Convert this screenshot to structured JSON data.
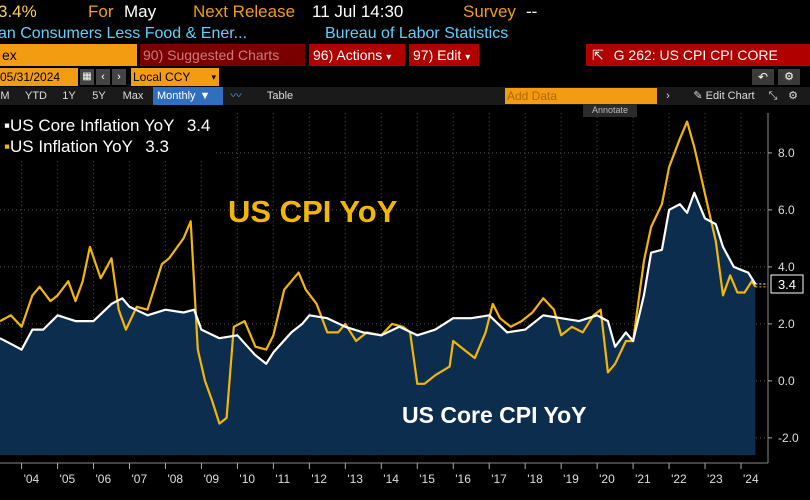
{
  "header": {
    "last_value": "3.4%",
    "for_label": "For",
    "for_value": "May",
    "next_label": "Next Release",
    "next_value": "11 Jul 14:30",
    "survey_label": "Survey",
    "survey_value": "--",
    "series_name": "an Consumers Less Food & Ener...",
    "source": "Bureau of Labor Statistics"
  },
  "toolbar": {
    "index_label": "ex",
    "suggested": "90) Suggested Charts",
    "actions": "96) Actions",
    "edit": "97) Edit",
    "title": "G 262: US CPI CPI CORE"
  },
  "controls": {
    "date": "05/31/2024",
    "currency": "Local CCY",
    "add_data": "Add Data",
    "edit_chart": "Edit Chart",
    "annotate": "Annotate"
  },
  "ranges": {
    "items": [
      "M",
      "YTD",
      "1Y",
      "5Y",
      "Max"
    ],
    "frequency": "Monthly",
    "table": "Table"
  },
  "colors": {
    "core": "#ffffff",
    "headline": "#f2b705",
    "fill": "#0e2f52",
    "orange": "#f39c12",
    "blue_text": "#5fd0ff",
    "red_bar": "#b00000"
  },
  "chart_data": {
    "type": "line",
    "legend": [
      {
        "name": "US Core Inflation YoY",
        "value": "3.4"
      },
      {
        "name": "US Inflation YoY",
        "value": "3.3"
      }
    ],
    "annotations": [
      "US CPI YoY",
      "US Core CPI YoY"
    ],
    "last_value_label": "3.4",
    "xlim": [
      2003.4,
      2024.75
    ],
    "ylim": [
      -2.6,
      9.4
    ],
    "y_ticks": [
      -2.0,
      0.0,
      2.0,
      4.0,
      6.0,
      8.0
    ],
    "y_tick_labels": [
      "-2.0",
      "0.0",
      "2.0",
      "4.0",
      "6.0",
      "8.0"
    ],
    "x_ticks": [
      2004,
      2005,
      2006,
      2007,
      2008,
      2009,
      2010,
      2011,
      2012,
      2013,
      2014,
      2015,
      2016,
      2017,
      2018,
      2019,
      2020,
      2021,
      2022,
      2023,
      2024
    ],
    "x_tick_labels": [
      "'04",
      "'05",
      "'06",
      "'07",
      "'08",
      "'09",
      "'10",
      "'11",
      "'12",
      "'13",
      "'14",
      "'15",
      "'16",
      "'17",
      "'18",
      "'19",
      "'20",
      "'21",
      "'22",
      "'23",
      "'24"
    ],
    "grid": true,
    "series": [
      {
        "name": "US Core Inflation YoY",
        "role": "core",
        "x": [
          2003.4,
          2003.7,
          2004.0,
          2004.3,
          2004.6,
          2005.0,
          2005.5,
          2006.0,
          2006.5,
          2006.8,
          2007.0,
          2007.5,
          2008.0,
          2008.5,
          2008.8,
          2009.0,
          2009.5,
          2010.0,
          2010.5,
          2010.8,
          2011.0,
          2011.5,
          2011.8,
          2012.0,
          2012.5,
          2013.0,
          2013.5,
          2014.0,
          2014.5,
          2015.0,
          2015.5,
          2016.0,
          2016.5,
          2017.0,
          2017.5,
          2018.0,
          2018.5,
          2019.0,
          2019.5,
          2020.0,
          2020.3,
          2020.5,
          2020.8,
          2021.0,
          2021.3,
          2021.5,
          2021.8,
          2022.0,
          2022.3,
          2022.5,
          2022.7,
          2023.0,
          2023.3,
          2023.5,
          2023.8,
          2024.0,
          2024.2,
          2024.4
        ],
        "y": [
          1.5,
          1.3,
          1.1,
          1.8,
          1.8,
          2.3,
          2.1,
          2.1,
          2.7,
          2.9,
          2.6,
          2.3,
          2.5,
          2.4,
          2.5,
          1.8,
          1.5,
          1.6,
          0.9,
          0.6,
          1.0,
          1.7,
          2.0,
          2.3,
          2.2,
          1.9,
          1.7,
          1.6,
          1.9,
          1.6,
          1.8,
          2.2,
          2.2,
          2.3,
          1.7,
          1.8,
          2.3,
          2.2,
          2.1,
          2.3,
          2.1,
          1.2,
          1.7,
          1.4,
          3.0,
          4.5,
          4.6,
          6.0,
          6.2,
          5.9,
          6.6,
          5.7,
          5.5,
          4.7,
          4.0,
          3.9,
          3.8,
          3.4
        ]
      },
      {
        "name": "US Inflation YoY",
        "role": "headline",
        "x": [
          2003.4,
          2003.7,
          2004.0,
          2004.3,
          2004.5,
          2004.8,
          2005.0,
          2005.3,
          2005.5,
          2005.7,
          2005.9,
          2006.2,
          2006.5,
          2006.7,
          2006.9,
          2007.2,
          2007.5,
          2007.9,
          2008.1,
          2008.5,
          2008.7,
          2008.9,
          2009.1,
          2009.3,
          2009.5,
          2009.7,
          2009.9,
          2010.2,
          2010.5,
          2010.8,
          2011.0,
          2011.3,
          2011.7,
          2011.9,
          2012.2,
          2012.5,
          2012.8,
          2013.0,
          2013.3,
          2013.6,
          2014.0,
          2014.3,
          2014.6,
          2014.8,
          2015.0,
          2015.2,
          2015.5,
          2015.9,
          2016.0,
          2016.3,
          2016.6,
          2016.9,
          2017.1,
          2017.3,
          2017.6,
          2017.9,
          2018.2,
          2018.5,
          2018.8,
          2019.0,
          2019.3,
          2019.6,
          2019.9,
          2020.1,
          2020.3,
          2020.5,
          2020.8,
          2021.0,
          2021.3,
          2021.5,
          2021.8,
          2022.0,
          2022.3,
          2022.5,
          2022.7,
          2022.9,
          2023.1,
          2023.3,
          2023.5,
          2023.7,
          2023.9,
          2024.1,
          2024.3,
          2024.4
        ],
        "y": [
          2.1,
          2.3,
          1.9,
          3.0,
          3.3,
          2.8,
          3.0,
          3.5,
          2.8,
          3.5,
          4.7,
          3.6,
          4.3,
          2.5,
          1.8,
          2.6,
          2.5,
          4.1,
          4.3,
          5.0,
          5.6,
          1.1,
          0.0,
          -0.7,
          -1.5,
          -1.3,
          1.9,
          2.1,
          1.2,
          1.1,
          1.6,
          3.2,
          3.8,
          3.2,
          2.7,
          1.7,
          1.7,
          2.0,
          1.4,
          1.7,
          1.6,
          2.0,
          1.9,
          1.7,
          -0.1,
          -0.1,
          0.2,
          0.5,
          1.4,
          1.1,
          0.8,
          1.7,
          2.7,
          2.2,
          1.9,
          2.1,
          2.4,
          2.9,
          2.5,
          1.6,
          1.9,
          1.7,
          2.3,
          2.5,
          0.3,
          0.6,
          1.4,
          1.4,
          4.2,
          5.4,
          6.2,
          7.5,
          8.5,
          9.1,
          8.2,
          7.1,
          6.0,
          4.9,
          3.0,
          3.7,
          3.1,
          3.1,
          3.5,
          3.3
        ]
      }
    ]
  }
}
